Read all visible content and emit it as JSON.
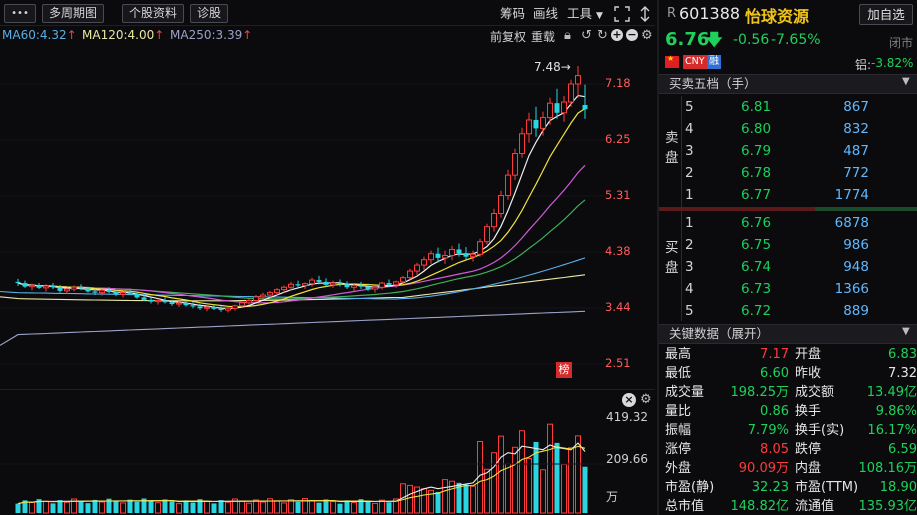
{
  "toolbar": {
    "more_label": "•••",
    "multi_period_label": "多周期图",
    "stock_info_label": "个股资料",
    "diagnosis_label": "诊股",
    "chip_label": "筹码",
    "drawline_label": "画线",
    "tools_label": "工具",
    "adj_label": "前复权",
    "reset_label": "重载"
  },
  "ma": [
    {
      "label": "MA60:4.32",
      "color": "#5aaee8"
    },
    {
      "label": "MA120:4.00",
      "color": "#e8e8a0"
    },
    {
      "label": "MA250:3.39",
      "color": "#9aa2c8"
    }
  ],
  "chart": {
    "price_ticks": [
      "7.18",
      "6.25",
      "5.31",
      "4.38",
      "3.44",
      "2.51"
    ],
    "high_marker": "7.48→",
    "flag_label": "榜",
    "vol_ticks": [
      "419.32",
      "209.66",
      "万"
    ]
  },
  "quote": {
    "prefix": "R",
    "code": "601388",
    "name": "怡球资源",
    "add_watch": "加自选",
    "price": "6.76",
    "change": "-0.56",
    "change_pct": "-7.65%",
    "status": "闭市",
    "cny": "CNY",
    "rong": "融",
    "aluminum_label": "铝:",
    "aluminum_change": "-3.82%"
  },
  "orderbook": {
    "title": "买卖五档（手）",
    "sell_label": [
      "卖",
      "盘"
    ],
    "buy_label": [
      "买",
      "盘"
    ],
    "asks": [
      {
        "level": "5",
        "price": "6.81",
        "vol": "867"
      },
      {
        "level": "4",
        "price": "6.80",
        "vol": "832"
      },
      {
        "level": "3",
        "price": "6.79",
        "vol": "487"
      },
      {
        "level": "2",
        "price": "6.78",
        "vol": "772"
      },
      {
        "level": "1",
        "price": "6.77",
        "vol": "1774"
      }
    ],
    "bids": [
      {
        "level": "1",
        "price": "6.76",
        "vol": "6878"
      },
      {
        "level": "2",
        "price": "6.75",
        "vol": "986"
      },
      {
        "level": "3",
        "price": "6.74",
        "vol": "948"
      },
      {
        "level": "4",
        "price": "6.73",
        "vol": "1366"
      },
      {
        "level": "5",
        "price": "6.72",
        "vol": "889"
      }
    ]
  },
  "key_data": {
    "title": "关键数据（展开）",
    "rows": [
      {
        "l1": "最高",
        "v1": "7.17",
        "c1": "red",
        "l2": "开盘",
        "v2": "6.83",
        "c2": "green"
      },
      {
        "l1": "最低",
        "v1": "6.60",
        "c1": "green",
        "l2": "昨收",
        "v2": "7.32",
        "c2": "white"
      },
      {
        "l1": "成交量",
        "v1": "198.25万",
        "c1": "green",
        "l2": "成交额",
        "v2": "13.49亿",
        "c2": "green"
      },
      {
        "l1": "量比",
        "v1": "0.86",
        "c1": "green",
        "l2": "换手",
        "v2": "9.86%",
        "c2": "green"
      },
      {
        "l1": "振幅",
        "v1": "7.79%",
        "c1": "green",
        "l2": "换手(实)",
        "v2": "16.17%",
        "c2": "green"
      },
      {
        "l1": "涨停",
        "v1": "8.05",
        "c1": "red",
        "l2": "跌停",
        "v2": "6.59",
        "c2": "green"
      },
      {
        "l1": "外盘",
        "v1": "90.09万",
        "c1": "red",
        "l2": "内盘",
        "v2": "108.16万",
        "c2": "green"
      },
      {
        "l1": "市盈(静)",
        "v1": "32.23",
        "c1": "green",
        "l2": "市盈(TTM)",
        "v2": "18.90",
        "c2": "green"
      },
      {
        "l1": "总市值",
        "v1": "148.82亿",
        "c1": "green",
        "l2": "流通值",
        "v2": "135.93亿",
        "c2": "green"
      }
    ]
  },
  "chart_data": {
    "type": "candlestick",
    "price_axis": [
      2.51,
      7.18
    ],
    "high_mark": 7.48,
    "volume_axis_max": 419.32,
    "volume_unit": "万",
    "candles": [
      [
        3.88,
        3.93,
        3.81,
        3.86
      ],
      [
        3.86,
        3.9,
        3.78,
        3.8
      ],
      [
        3.8,
        3.85,
        3.74,
        3.82
      ],
      [
        3.82,
        3.86,
        3.76,
        3.78
      ],
      [
        3.78,
        3.84,
        3.72,
        3.81
      ],
      [
        3.81,
        3.86,
        3.76,
        3.79
      ],
      [
        3.79,
        3.83,
        3.7,
        3.73
      ],
      [
        3.73,
        3.78,
        3.68,
        3.76
      ],
      [
        3.76,
        3.82,
        3.72,
        3.79
      ],
      [
        3.79,
        3.84,
        3.74,
        3.77
      ],
      [
        3.77,
        3.8,
        3.7,
        3.72
      ],
      [
        3.72,
        3.76,
        3.66,
        3.7
      ],
      [
        3.7,
        3.76,
        3.65,
        3.74
      ],
      [
        3.74,
        3.79,
        3.69,
        3.71
      ],
      [
        3.71,
        3.74,
        3.64,
        3.67
      ],
      [
        3.67,
        3.72,
        3.62,
        3.7
      ],
      [
        3.7,
        3.75,
        3.66,
        3.68
      ],
      [
        3.68,
        3.71,
        3.6,
        3.62
      ],
      [
        3.62,
        3.66,
        3.56,
        3.58
      ],
      [
        3.58,
        3.62,
        3.52,
        3.55
      ],
      [
        3.55,
        3.6,
        3.5,
        3.57
      ],
      [
        3.57,
        3.62,
        3.52,
        3.54
      ],
      [
        3.54,
        3.58,
        3.48,
        3.51
      ],
      [
        3.51,
        3.56,
        3.46,
        3.53
      ],
      [
        3.53,
        3.57,
        3.47,
        3.49
      ],
      [
        3.49,
        3.54,
        3.44,
        3.47
      ],
      [
        3.47,
        3.51,
        3.41,
        3.44
      ],
      [
        3.44,
        3.49,
        3.39,
        3.46
      ],
      [
        3.46,
        3.5,
        3.41,
        3.43
      ],
      [
        3.43,
        3.47,
        3.38,
        3.41
      ],
      [
        3.41,
        3.46,
        3.37,
        3.44
      ],
      [
        3.44,
        3.5,
        3.4,
        3.48
      ],
      [
        3.48,
        3.55,
        3.45,
        3.53
      ],
      [
        3.53,
        3.6,
        3.5,
        3.57
      ],
      [
        3.57,
        3.66,
        3.54,
        3.63
      ],
      [
        3.63,
        3.7,
        3.58,
        3.66
      ],
      [
        3.66,
        3.73,
        3.62,
        3.7
      ],
      [
        3.7,
        3.78,
        3.66,
        3.75
      ],
      [
        3.75,
        3.82,
        3.7,
        3.79
      ],
      [
        3.79,
        3.88,
        3.74,
        3.84
      ],
      [
        3.84,
        3.9,
        3.78,
        3.82
      ],
      [
        3.82,
        3.87,
        3.76,
        3.85
      ],
      [
        3.85,
        3.95,
        3.8,
        3.91
      ],
      [
        3.91,
        3.98,
        3.84,
        3.88
      ],
      [
        3.88,
        3.94,
        3.8,
        3.83
      ],
      [
        3.83,
        3.9,
        3.78,
        3.86
      ],
      [
        3.86,
        3.92,
        3.8,
        3.84
      ],
      [
        3.84,
        3.89,
        3.76,
        3.79
      ],
      [
        3.79,
        3.86,
        3.72,
        3.82
      ],
      [
        3.82,
        3.88,
        3.76,
        3.8
      ],
      [
        3.8,
        3.85,
        3.73,
        3.76
      ],
      [
        3.76,
        3.82,
        3.7,
        3.79
      ],
      [
        3.79,
        3.88,
        3.75,
        3.86
      ],
      [
        3.86,
        3.92,
        3.8,
        3.83
      ],
      [
        3.83,
        3.9,
        3.78,
        3.88
      ],
      [
        3.88,
        3.98,
        3.84,
        3.95
      ],
      [
        3.95,
        4.1,
        3.92,
        4.06
      ],
      [
        4.06,
        4.2,
        4.0,
        4.16
      ],
      [
        4.16,
        4.3,
        4.08,
        4.25
      ],
      [
        4.25,
        4.4,
        4.18,
        4.35
      ],
      [
        4.35,
        4.45,
        4.2,
        4.28
      ],
      [
        4.28,
        4.4,
        4.18,
        4.32
      ],
      [
        4.32,
        4.48,
        4.24,
        4.42
      ],
      [
        4.42,
        4.52,
        4.3,
        4.36
      ],
      [
        4.36,
        4.46,
        4.26,
        4.3
      ],
      [
        4.3,
        4.4,
        4.22,
        4.34
      ],
      [
        4.34,
        4.6,
        4.3,
        4.55
      ],
      [
        4.55,
        4.85,
        4.5,
        4.8
      ],
      [
        4.8,
        5.1,
        4.72,
        5.02
      ],
      [
        5.02,
        5.4,
        4.95,
        5.32
      ],
      [
        5.32,
        5.75,
        5.25,
        5.66
      ],
      [
        5.66,
        6.1,
        5.58,
        6.02
      ],
      [
        6.02,
        6.45,
        5.95,
        6.35
      ],
      [
        6.35,
        6.7,
        6.2,
        6.58
      ],
      [
        6.58,
        6.8,
        6.3,
        6.44
      ],
      [
        6.44,
        6.72,
        6.32,
        6.62
      ],
      [
        6.62,
        6.95,
        6.5,
        6.86
      ],
      [
        6.86,
        7.1,
        6.6,
        6.7
      ],
      [
        6.7,
        6.98,
        6.55,
        6.88
      ],
      [
        6.88,
        7.25,
        6.8,
        7.18
      ],
      [
        7.18,
        7.48,
        6.95,
        7.32
      ],
      [
        6.83,
        7.17,
        6.6,
        6.76
      ]
    ]
  }
}
